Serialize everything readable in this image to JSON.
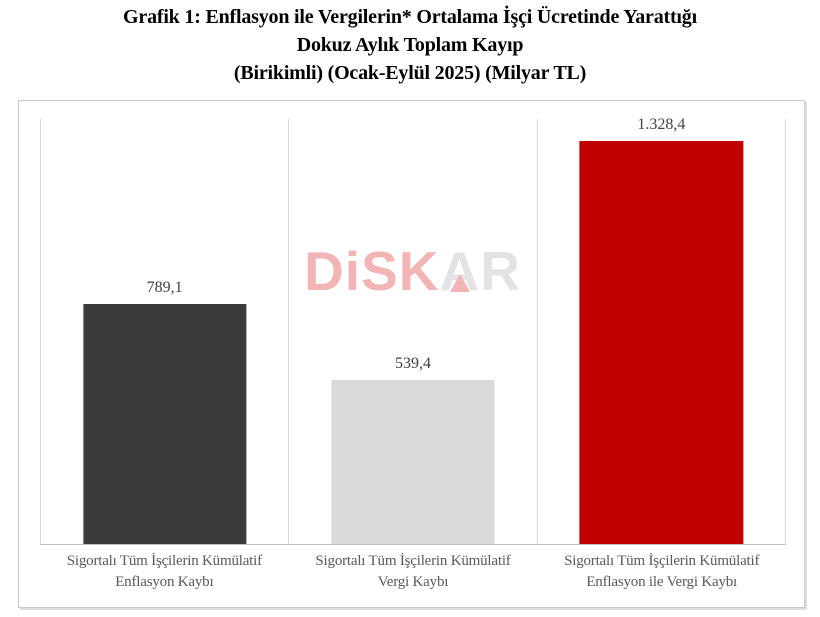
{
  "title": {
    "line1": "Grafik 1: Enflasyon ile Vergilerin* Ortalama İşçi Ücretinde Yarattığı",
    "line2": "Dokuz Aylık Toplam Kayıp",
    "line3": "(Birikimli) (Ocak-Eylül 2025) (Milyar TL)"
  },
  "watermark": {
    "part_pink": "DiSK",
    "part_gray_a": "A",
    "part_gray_r": "R",
    "pink_color": "#f2b4b4",
    "gray_color": "#e3e3e3"
  },
  "chart_data": {
    "type": "bar",
    "title": "Grafik 1: Enflasyon ile Vergilerin* Ortalama İşçi Ücretinde Yarattığı Dokuz Aylık Toplam Kayıp (Birikimli) (Ocak-Eylül 2025) (Milyar TL)",
    "unit": "Milyar TL",
    "xlabel": "",
    "ylabel": "",
    "ylim": [
      0,
      1400
    ],
    "grid": "vertical category separators and baseline only, no y-axis ticks",
    "legend": "none",
    "categories": [
      "Sigortalı Tüm İşçilerin Kümülatif Enflasyon Kaybı",
      "Sigortalı Tüm İşçilerin Kümülatif Vergi Kaybı",
      "Sigortalı Tüm İşçilerin Kümülatif Enflasyon ile Vergi Kaybı"
    ],
    "values": [
      789.1,
      539.4,
      1328.4
    ],
    "bars": [
      {
        "label_line1": "Sigortalı Tüm İşçilerin Kümülatif",
        "label_line2": "Enflasyon Kaybı",
        "value": 789.1,
        "value_label": "789,1",
        "color": "#3b3b3b"
      },
      {
        "label_line1": "Sigortalı Tüm İşçilerin Kümülatif",
        "label_line2": "Vergi Kaybı",
        "value": 539.4,
        "value_label": "539,4",
        "color": "#d9d9d9"
      },
      {
        "label_line1": "Sigortalı Tüm İşçilerin Kümülatif",
        "label_line2": "Enflasyon ile Vergi Kaybı",
        "value": 1328.4,
        "value_label": "1.328,4",
        "color": "#c00000"
      }
    ],
    "colors": {
      "bar_dark_gray": "#3b3b3b",
      "bar_light_gray": "#d9d9d9",
      "bar_red": "#c00000",
      "gridline": "#d9d9d9",
      "baseline": "#bfbfbf",
      "frame_border": "#c9c9c9",
      "value_label_text": "#404040",
      "category_label_text": "#595959",
      "title_text": "#000000"
    }
  }
}
